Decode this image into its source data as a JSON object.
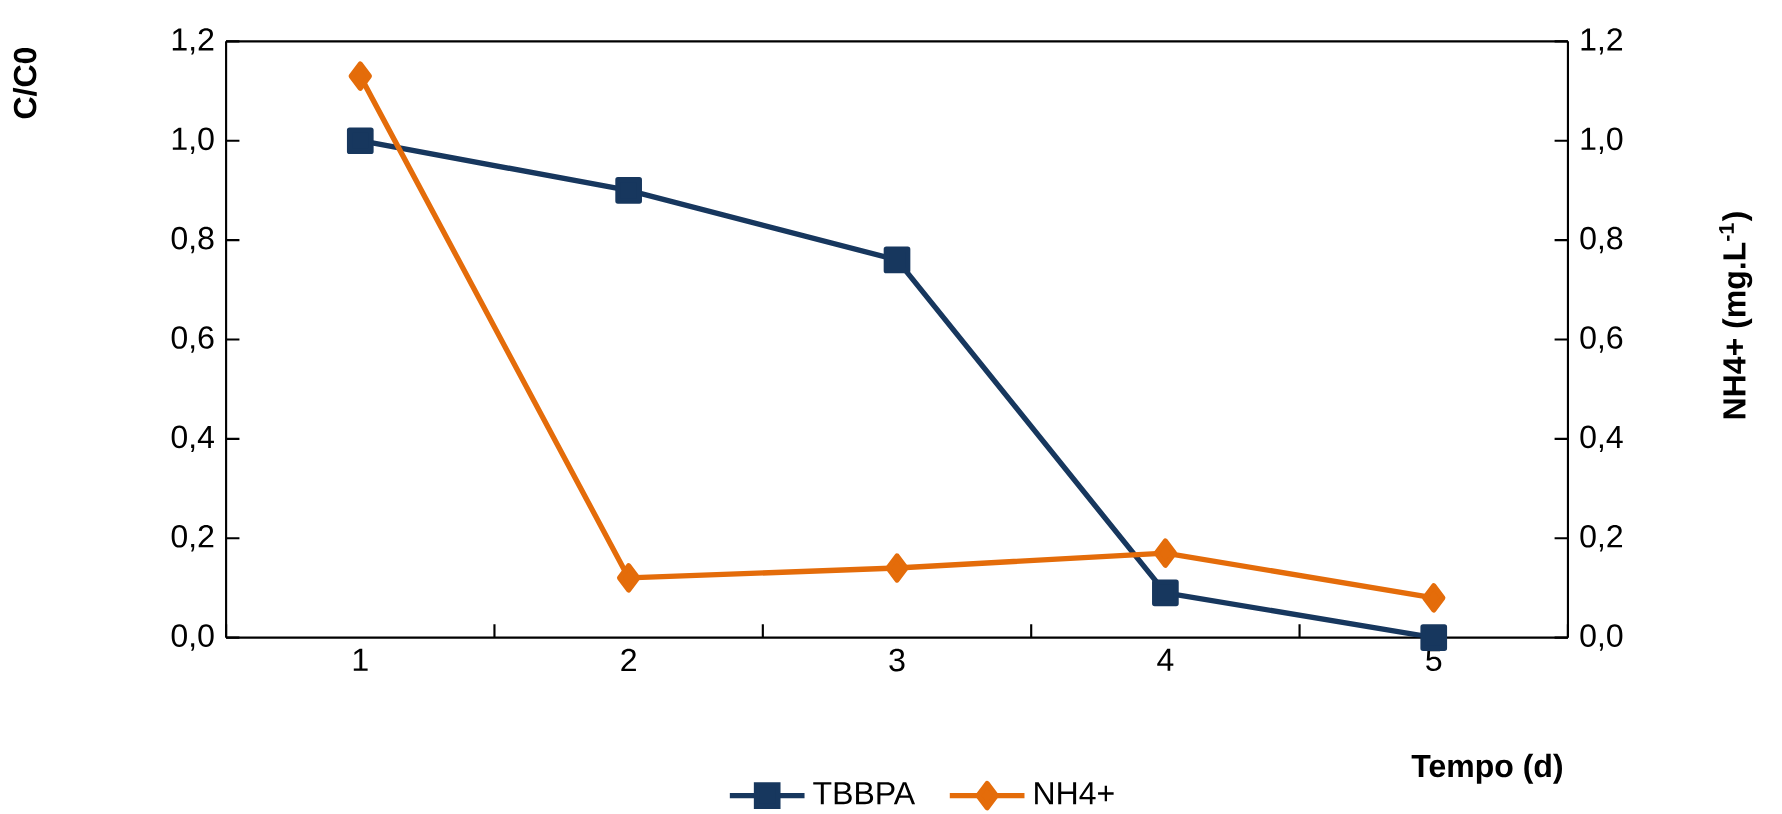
{
  "chart_data": {
    "type": "line",
    "categories": [
      "1",
      "2",
      "3",
      "4",
      "5"
    ],
    "xlabel": "Tempo (d)",
    "ylabel": "C/C0",
    "y2label": "NH4+ (mg.L$^{-1}$)",
    "ylim": [
      0,
      1.2
    ],
    "yticks": [
      {
        "value": 0,
        "label": "0,0"
      },
      {
        "value": 0.2,
        "label": "0,2"
      },
      {
        "value": 0.4,
        "label": "0,4"
      },
      {
        "value": 0.6,
        "label": "0,6"
      },
      {
        "value": 0.8,
        "label": "0,8"
      },
      {
        "value": 1.0,
        "label": "1,0"
      },
      {
        "value": 1.2,
        "label": "1,2"
      }
    ],
    "y2lim": [
      0,
      1.2
    ],
    "y2ticks": [
      {
        "value": 0,
        "label": "0,0"
      },
      {
        "value": 0.2,
        "label": "0,2"
      },
      {
        "value": 0.4,
        "label": "0,4"
      },
      {
        "value": 0.6,
        "label": "0,6"
      },
      {
        "value": 0.8,
        "label": "0,8"
      },
      {
        "value": 1.0,
        "label": "1,0"
      },
      {
        "value": 1.2,
        "label": "1,2"
      }
    ],
    "legend": "bottom",
    "series": [
      {
        "name": "TBBPA",
        "color": "#17375e",
        "marker": "square",
        "values": [
          1.0,
          0.9,
          0.76,
          0.09,
          0.0
        ]
      },
      {
        "name": "NH4+",
        "color": "#e46c0a",
        "marker": "diamond",
        "axis": "y2",
        "values": [
          1.13,
          0.12,
          0.14,
          0.17,
          0.08
        ]
      }
    ]
  }
}
